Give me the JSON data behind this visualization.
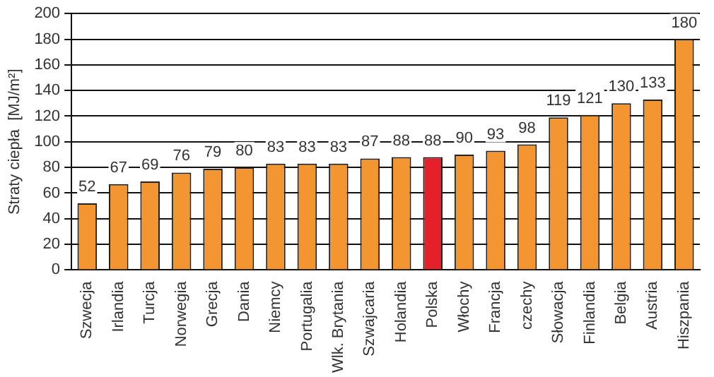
{
  "chart_data": {
    "type": "bar",
    "ylabel": "Straty ciepła  [MJ/m²]",
    "categories": [
      "Szwecja",
      "Irlandia",
      "Turcja",
      "Norwegia",
      "Grecja",
      "Dania",
      "Niemcy",
      "Portugalia",
      "Wlk. Brytania",
      "Szwajcaria",
      "Holandia",
      "Polska",
      "Włochy",
      "Francja",
      "czechy",
      "Słowacja",
      "Finlandia",
      "Belgia",
      "Austria",
      "Hiszpania"
    ],
    "values": [
      52,
      67,
      69,
      76,
      79,
      80,
      83,
      83,
      83,
      87,
      88,
      88,
      90,
      93,
      98,
      119,
      121,
      130,
      133,
      180
    ],
    "colors": [
      "#f39530",
      "#f39530",
      "#f39530",
      "#f39530",
      "#f39530",
      "#f39530",
      "#f39530",
      "#f39530",
      "#f39530",
      "#f39530",
      "#f39530",
      "#e4202a",
      "#f39530",
      "#f39530",
      "#f39530",
      "#f39530",
      "#f39530",
      "#f39530",
      "#f39530",
      "#f39530"
    ],
    "ylim": [
      0,
      200
    ],
    "yticks": [
      0,
      20,
      40,
      60,
      80,
      100,
      120,
      140,
      160,
      180,
      200
    ],
    "grid": "y",
    "data_labels": true,
    "legend": false
  }
}
